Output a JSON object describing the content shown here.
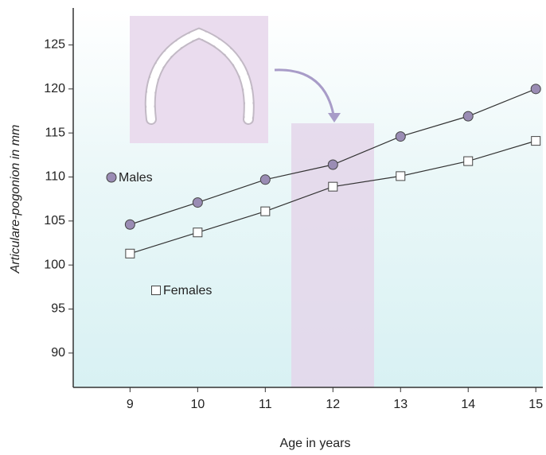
{
  "chart_data": {
    "type": "line",
    "x_label": "Age in years",
    "y_label": "Articulare-pogonion in mm",
    "x": [
      9,
      10,
      11,
      12,
      13,
      14,
      15
    ],
    "series": [
      {
        "name": "Males",
        "color": "#9a8cb4",
        "marker": "circle",
        "values": [
          104.6,
          107.1,
          109.7,
          111.4,
          114.6,
          116.9,
          120.0
        ]
      },
      {
        "name": "Females",
        "color": "#ffffff",
        "marker": "square",
        "values": [
          101.3,
          103.7,
          106.1,
          108.9,
          110.1,
          111.8,
          114.1
        ]
      }
    ],
    "xlim": [
      8.16,
      15.08
    ],
    "ylim": [
      86.1,
      129.2
    ],
    "xticks": [
      9,
      10,
      11,
      12,
      13,
      14,
      15
    ],
    "yticks": [
      90,
      95,
      100,
      105,
      110,
      115,
      120,
      125
    ]
  }
}
